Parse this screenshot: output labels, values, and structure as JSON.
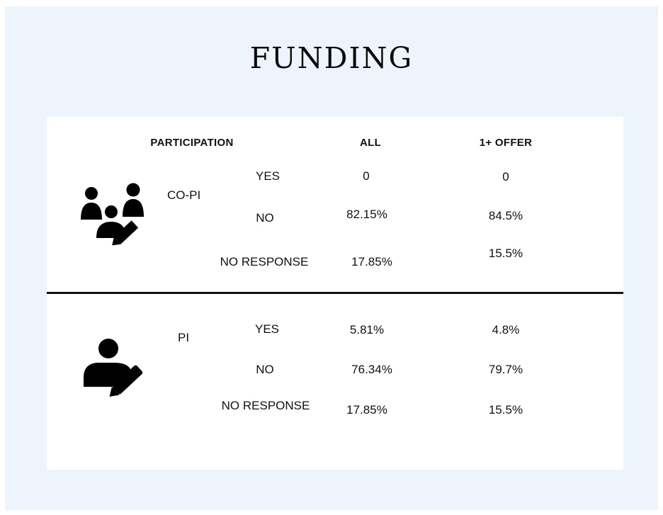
{
  "title": "FUNDING",
  "table": {
    "headers": {
      "participation": "PARTICIPATION",
      "all": "ALL",
      "offer": "1+ OFFER"
    },
    "groups": [
      {
        "label": "CO-PI",
        "icon": "group-editing-icon",
        "rows": [
          {
            "response": "YES",
            "all": "0",
            "offer": "0"
          },
          {
            "response": "NO",
            "all": "82.15%",
            "offer": "84.5%"
          },
          {
            "response": "NO RESPONSE",
            "all": "17.85%",
            "offer": "15.5%"
          }
        ]
      },
      {
        "label": "PI",
        "icon": "person-editing-icon",
        "rows": [
          {
            "response": "YES",
            "all": "5.81%",
            "offer": "4.8%"
          },
          {
            "response": "NO",
            "all": "76.34%",
            "offer": "79.7%"
          },
          {
            "response": "NO RESPONSE",
            "all": "17.85%",
            "offer": "15.5%"
          }
        ]
      }
    ]
  }
}
